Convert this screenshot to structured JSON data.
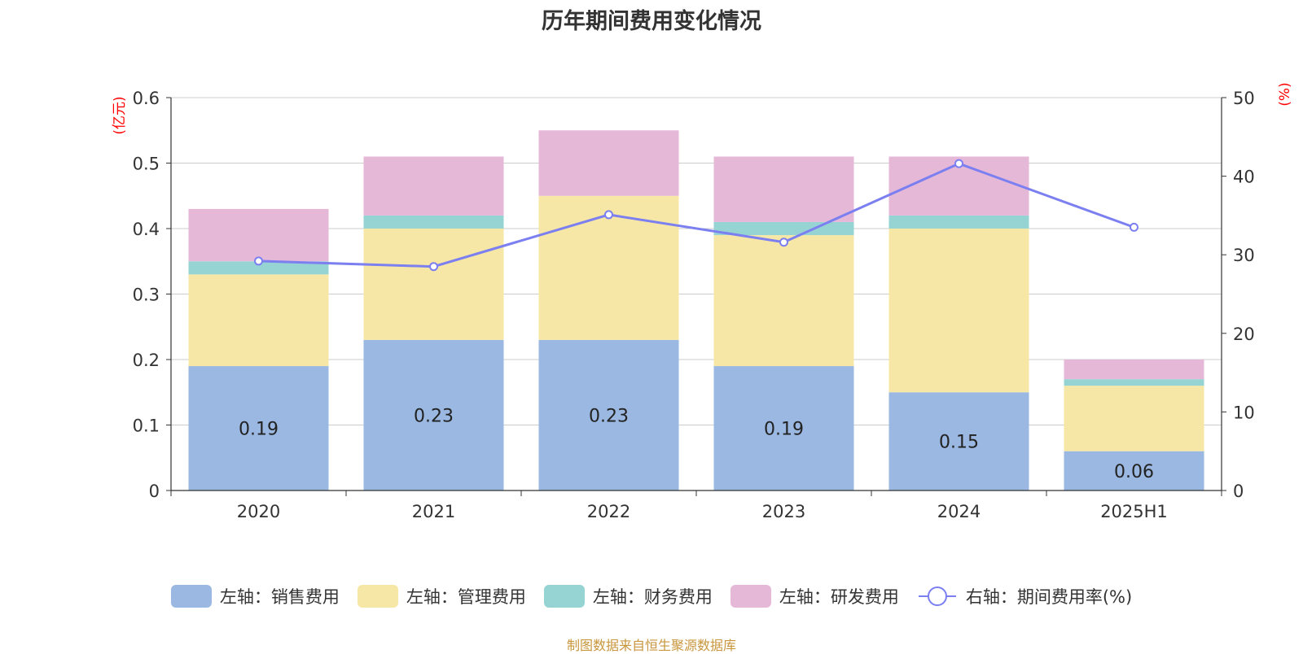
{
  "chart_data": {
    "type": "bar",
    "stacked": true,
    "title": "历年期间费用变化情况",
    "categories": [
      "2020",
      "2021",
      "2022",
      "2023",
      "2024",
      "2025H1"
    ],
    "left_axis": {
      "unit": "(亿元)",
      "ylim": [
        0,
        0.6
      ],
      "ticks": [
        "0",
        "0.1",
        "0.2",
        "0.3",
        "0.4",
        "0.5",
        "0.6"
      ]
    },
    "right_axis": {
      "unit": "(%)",
      "ylim": [
        0,
        50
      ],
      "ticks": [
        "0",
        "10",
        "20",
        "30",
        "40",
        "50"
      ]
    },
    "series": [
      {
        "name": "左轴：销售费用",
        "color": "#9ab8e1",
        "values": [
          0.19,
          0.23,
          0.23,
          0.19,
          0.15,
          0.06
        ],
        "labels": [
          "0.19",
          "0.23",
          "0.23",
          "0.19",
          "0.15",
          "0.06"
        ]
      },
      {
        "name": "左轴：管理费用",
        "color": "#f7e7a6",
        "values": [
          0.14,
          0.17,
          0.22,
          0.2,
          0.25,
          0.1
        ]
      },
      {
        "name": "左轴：财务费用",
        "color": "#96d4d4",
        "values": [
          0.02,
          0.02,
          0.0,
          0.02,
          0.02,
          0.01
        ]
      },
      {
        "name": "左轴：研发费用",
        "color": "#e6b8d8",
        "values": [
          0.08,
          0.09,
          0.1,
          0.1,
          0.09,
          0.03
        ]
      }
    ],
    "line_series": {
      "name": "右轴：期间费用率(%)",
      "color": "#7b7ff0",
      "values": [
        29.2,
        28.5,
        35.1,
        31.6,
        41.6,
        33.5
      ]
    },
    "grid": true,
    "legend_position": "bottom"
  },
  "source_note": "制图数据来自恒生聚源数据库"
}
